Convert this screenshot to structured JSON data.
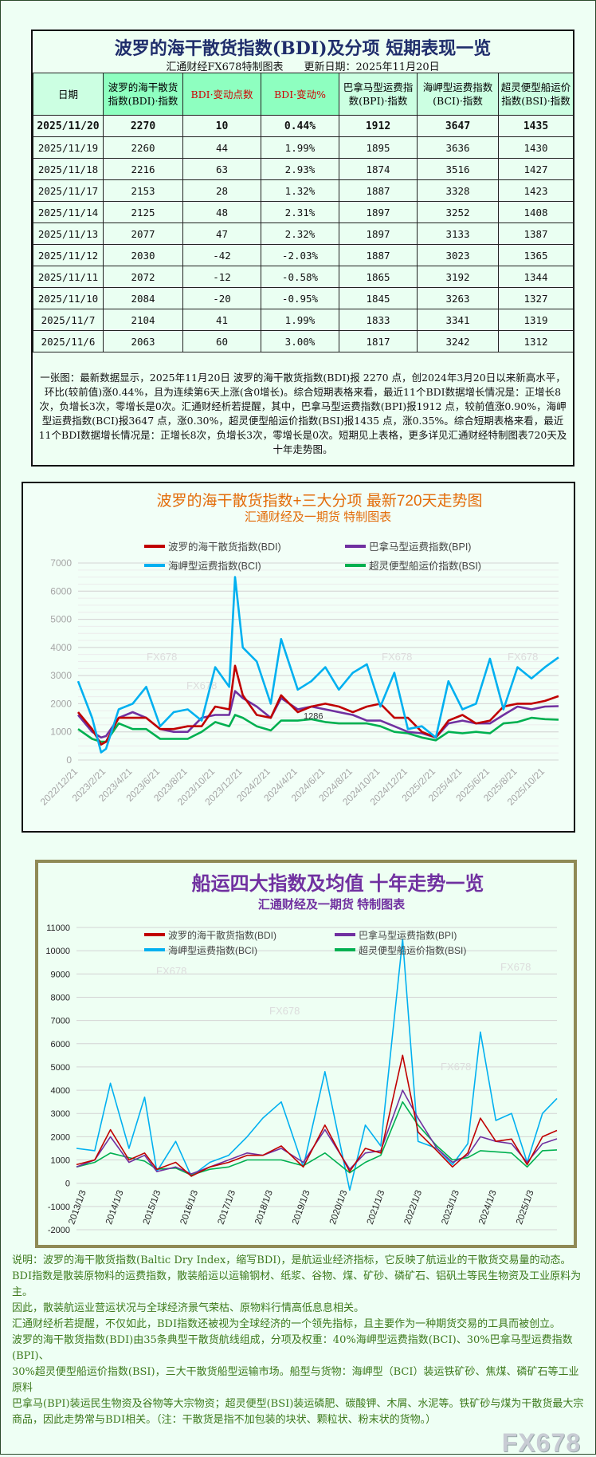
{
  "table": {
    "title": "波罗的海干散货指数(BDI)及分项 短期表现一览",
    "subtitle": "汇通财经FX678特制图表　　更新日期：2025年11月20日",
    "headers": [
      "日期",
      "波罗的海干散货指数(BDI)·指数",
      "BDI·变动点数",
      "BDI·变动%",
      "巴拿马型运费指数(BPI)·指数",
      "海岬型运费指数(BCI)·指数",
      "超灵便型船运价指数(BSI)·指数"
    ],
    "rows": [
      [
        "2025/11/20",
        "2270",
        "10",
        "0.44%",
        "1912",
        "3647",
        "1435"
      ],
      [
        "2025/11/19",
        "2260",
        "44",
        "1.99%",
        "1895",
        "3636",
        "1430"
      ],
      [
        "2025/11/18",
        "2216",
        "63",
        "2.93%",
        "1874",
        "3516",
        "1427"
      ],
      [
        "2025/11/17",
        "2153",
        "28",
        "1.32%",
        "1887",
        "3328",
        "1423"
      ],
      [
        "2025/11/14",
        "2125",
        "48",
        "2.31%",
        "1897",
        "3252",
        "1408"
      ],
      [
        "2025/11/13",
        "2077",
        "47",
        "2.32%",
        "1897",
        "3133",
        "1387"
      ],
      [
        "2025/11/12",
        "2030",
        "-42",
        "-2.03%",
        "1887",
        "3023",
        "1365"
      ],
      [
        "2025/11/11",
        "2072",
        "-12",
        "-0.58%",
        "1865",
        "3192",
        "1344"
      ],
      [
        "2025/11/10",
        "2084",
        "-20",
        "-0.95%",
        "1845",
        "3263",
        "1327"
      ],
      [
        "2025/11/7",
        "2104",
        "41",
        "1.99%",
        "1833",
        "3341",
        "1319"
      ],
      [
        "2025/11/6",
        "2063",
        "60",
        "3.00%",
        "1817",
        "3242",
        "1312"
      ]
    ],
    "summary": "一张图：最新数据显示，2025年11月20日 波罗的海干散货指数(BDI)报 2270 点，创2024年3月20日以来新高水平，环比(较前值)涨0.44%，且为连续第6天上涨(含0增长)。综合短期表格来看，最近11个BDI数据增长情况是：正增长8次，负增长3次，零增长是0次。汇通财经析若提醒，其中，巴拿马型运费指数(BPI)报1912 点，较前值涨0.90%，海岬型运费指数(BCI)报3647 点，涨0.30%，超灵便型船运价指数(BSI)报1435 点，涨0.35%。综合短期表格来看，最近11个BDI数据增长情况是：正增长8次，负增长3次，零增长是0次。短期见上表格，更多详见汇通财经特制图表720天及十年走势图。"
  },
  "colors": {
    "bdi": "#c00000",
    "bpi": "#7030a0",
    "bci": "#00b0f0",
    "bsi": "#00b050",
    "chart1_title": "#e36c09",
    "chart2_title": "#7030a0",
    "desc_text": "#3d7a1c"
  },
  "watermark": "FX678",
  "chart_data": [
    {
      "type": "line",
      "title": "波罗的海干散货指数+三大分项  最新720天走势图",
      "subtitle": "汇通财经及一期货  特制图表",
      "ylim": [
        0,
        7000
      ],
      "yticks": [
        0,
        1000,
        2000,
        3000,
        4000,
        5000,
        6000,
        7000
      ],
      "xticks": [
        "2022/12/21",
        "2023/2/21",
        "2023/4/21",
        "2023/6/21",
        "2023/8/21",
        "2023/10/21",
        "2023/12/21",
        "2024/2/21",
        "2024/4/21",
        "2024/6/21",
        "2024/8/21",
        "2024/10/21",
        "2024/12/21",
        "2025/2/21",
        "2025/4/21",
        "2025/6/21",
        "2025/8/21",
        "2025/10/21"
      ],
      "grid": true,
      "legend": "top",
      "annotation": "1286",
      "x": [
        "2022/12/21",
        "2023/1/21",
        "2023/2/10",
        "2023/2/21",
        "2023/3/21",
        "2023/4/21",
        "2023/5/21",
        "2023/6/21",
        "2023/7/21",
        "2023/8/21",
        "2023/9/21",
        "2023/10/21",
        "2023/11/21",
        "2023/12/4",
        "2023/12/21",
        "2024/1/21",
        "2024/2/21",
        "2024/3/15",
        "2024/4/21",
        "2024/5/21",
        "2024/6/21",
        "2024/7/21",
        "2024/8/21",
        "2024/9/21",
        "2024/10/21",
        "2024/11/21",
        "2024/12/21",
        "2025/1/21",
        "2025/2/21",
        "2025/3/21",
        "2025/4/21",
        "2025/5/21",
        "2025/6/21",
        "2025/7/21",
        "2025/8/21",
        "2025/9/21",
        "2025/10/21",
        "2025/11/20"
      ],
      "series": [
        {
          "name": "波罗的海干散货指数(BDI)",
          "key": "bdi",
          "values": [
            1700,
            1100,
            550,
            650,
            1500,
            1500,
            1500,
            1100,
            1100,
            1200,
            1200,
            1900,
            1800,
            3350,
            2300,
            1600,
            1500,
            2300,
            1700,
            1900,
            2000,
            1900,
            1700,
            1900,
            2000,
            1500,
            1500,
            1000,
            800,
            1400,
            1600,
            1300,
            1400,
            1900,
            2000,
            2000,
            2100,
            2270
          ]
        },
        {
          "name": "巴拿马型运费指数(BPI)",
          "key": "bpi",
          "values": [
            1600,
            1000,
            800,
            850,
            1500,
            1700,
            1500,
            1100,
            1000,
            1000,
            1500,
            1600,
            1600,
            2450,
            2200,
            1900,
            1500,
            2200,
            1800,
            1900,
            1800,
            1700,
            1600,
            1400,
            1400,
            1200,
            1000,
            950,
            800,
            1300,
            1400,
            1300,
            1300,
            1600,
            1900,
            1800,
            1900,
            1912
          ]
        },
        {
          "name": "海岬型运费指数(BCI)",
          "key": "bci",
          "values": [
            2800,
            1500,
            270,
            400,
            1800,
            2000,
            2600,
            1200,
            1700,
            1800,
            1400,
            3300,
            2600,
            6500,
            4000,
            3500,
            2000,
            4300,
            2500,
            2800,
            3300,
            2500,
            3100,
            3400,
            1900,
            3100,
            1100,
            1200,
            800,
            2800,
            1800,
            2000,
            3600,
            1800,
            3300,
            2900,
            3300,
            3647
          ]
        },
        {
          "name": "超灵便型船运价指数(BSI)",
          "key": "bsi",
          "values": [
            1100,
            750,
            650,
            650,
            1300,
            1100,
            1100,
            750,
            750,
            750,
            1000,
            1350,
            1200,
            1600,
            1500,
            1200,
            1050,
            1400,
            1400,
            1450,
            1350,
            1300,
            1300,
            1300,
            1200,
            1000,
            950,
            800,
            700,
            1000,
            950,
            1000,
            950,
            1300,
            1350,
            1500,
            1450,
            1435
          ]
        }
      ]
    },
    {
      "type": "line",
      "title": "船运四大指数及均值 十年走势一览",
      "subtitle": "汇通财经及一期货 特制图表",
      "ylim": [
        -2000,
        11000
      ],
      "yticks": [
        -2000,
        -1000,
        0,
        1000,
        2000,
        3000,
        4000,
        5000,
        6000,
        7000,
        8000,
        9000,
        10000,
        11000
      ],
      "xticks": [
        "2013/1/3",
        "2014/1/3",
        "2015/1/3",
        "2016/1/3",
        "2017/1/3",
        "2018/1/3",
        "2019/1/3",
        "2020/1/3",
        "2021/1/3",
        "2022/1/3",
        "2023/1/3",
        "2024/1/3",
        "2025/1/3"
      ],
      "grid": true,
      "legend": "top",
      "x": [
        "2013/1/3",
        "2013/7/1",
        "2013/12/1",
        "2014/6/1",
        "2014/11/1",
        "2015/3/1",
        "2015/9/1",
        "2016/2/1",
        "2016/8/1",
        "2017/2/1",
        "2017/8/1",
        "2018/1/1",
        "2018/7/1",
        "2019/2/1",
        "2019/9/1",
        "2020/5/1",
        "2020/10/1",
        "2021/3/1",
        "2021/10/1",
        "2022/3/1",
        "2022/9/1",
        "2023/2/1",
        "2023/7/1",
        "2023/11/1",
        "2024/4/1",
        "2024/9/1",
        "2025/2/1",
        "2025/7/1",
        "2025/11/20"
      ],
      "series": [
        {
          "name": "波罗的海干散货指数(BDI)",
          "key": "bdi",
          "values": [
            800,
            1000,
            2300,
            1000,
            1300,
            600,
            900,
            300,
            700,
            900,
            1200,
            1200,
            1600,
            700,
            2500,
            500,
            1500,
            1300,
            5500,
            2200,
            1400,
            700,
            1300,
            2800,
            1800,
            1900,
            800,
            2000,
            2270
          ]
        },
        {
          "name": "巴拿马型运费指数(BPI)",
          "key": "bpi",
          "values": [
            700,
            1000,
            2000,
            900,
            1200,
            500,
            700,
            400,
            700,
            1000,
            1300,
            1200,
            1500,
            900,
            2300,
            600,
            1300,
            1400,
            4000,
            2800,
            1500,
            900,
            1200,
            2000,
            1800,
            1700,
            900,
            1700,
            1912
          ]
        },
        {
          "name": "海岬型运费指数(BCI)",
          "key": "bci",
          "values": [
            1500,
            1400,
            4300,
            1500,
            3700,
            500,
            1800,
            300,
            900,
            1200,
            2000,
            2800,
            3500,
            700,
            4800,
            -300,
            2500,
            1600,
            10500,
            1800,
            1500,
            800,
            1700,
            6500,
            2700,
            3000,
            900,
            3000,
            3647
          ]
        },
        {
          "name": "超灵便型船运价指数(BSI)",
          "key": "bsi",
          "values": [
            700,
            900,
            1300,
            1100,
            950,
            600,
            650,
            350,
            600,
            700,
            1000,
            1000,
            1000,
            750,
            1300,
            450,
            900,
            1200,
            3500,
            2500,
            1600,
            1000,
            1100,
            1400,
            1350,
            1300,
            700,
            1400,
            1435
          ]
        }
      ]
    }
  ],
  "description": [
    "说明：波罗的海干散货指数(Baltic Dry Index，缩写BDI)，是航运业经济指标，它反映了航运业的干散货交易量的动态。",
    "BDI指数是散装原物料的运费指数，散装船运以运输钢材、纸浆、谷物、煤、矿砂、磷矿石、铝矾土等民生物资及工业原料为主。",
    "因此，散装航运业营运状况与全球经济景气荣枯、原物料行情高低息息相关。",
    "汇通财经析若提醒，不仅如此，BDI指数还被视为全球经济的一个领先指标，且主要作为一种期货交易的工具而被创立。",
    "波罗的海干散货指数(BDI)由35条典型干散货航线组成，分项及权重：40%海岬型运费指数(BCI)、30%巴拿马型运费指数(BPI)、",
    "30%超灵便型船运价指数(BSI)，三大干散货船型运输市场。船型与货物：海岬型（BCI）装运铁矿砂、焦煤、磷矿石等工业原料",
    "巴拿马(BPI)装运民生物资及谷物等大宗物资；超灵便型(BSI)装运磷肥、碳酸钾、木屑、水泥等。铁矿砂与煤为干散货最大宗",
    "商品，因此走势常与BDI相关。（注：干散货是指不加包装的块状、颗粒状、粉末状的货物。）"
  ]
}
